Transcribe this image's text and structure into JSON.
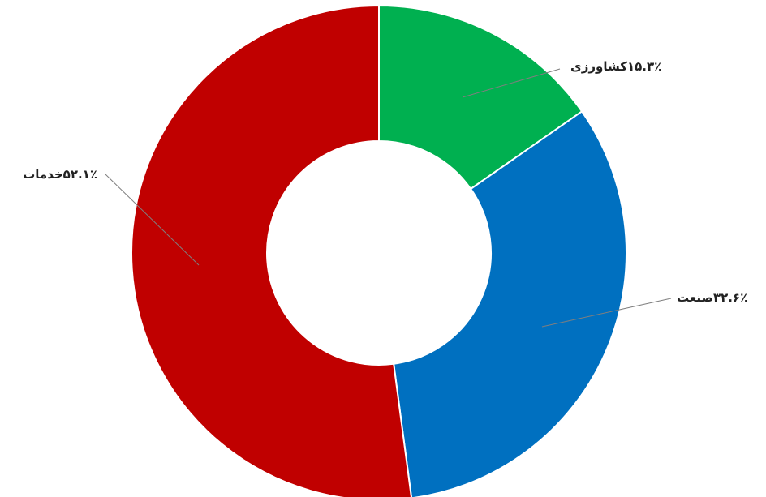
{
  "chart_data": {
    "type": "donut",
    "categories": [
      "کشاورزی",
      "صنعت",
      "خدمات"
    ],
    "values": [
      15.3,
      32.6,
      52.1
    ],
    "value_labels": [
      "۱۵.۳٪",
      "۳۲.۶٪",
      "۵۲.۱٪"
    ],
    "colors": [
      "#00b050",
      "#0070c0",
      "#c00000"
    ]
  }
}
